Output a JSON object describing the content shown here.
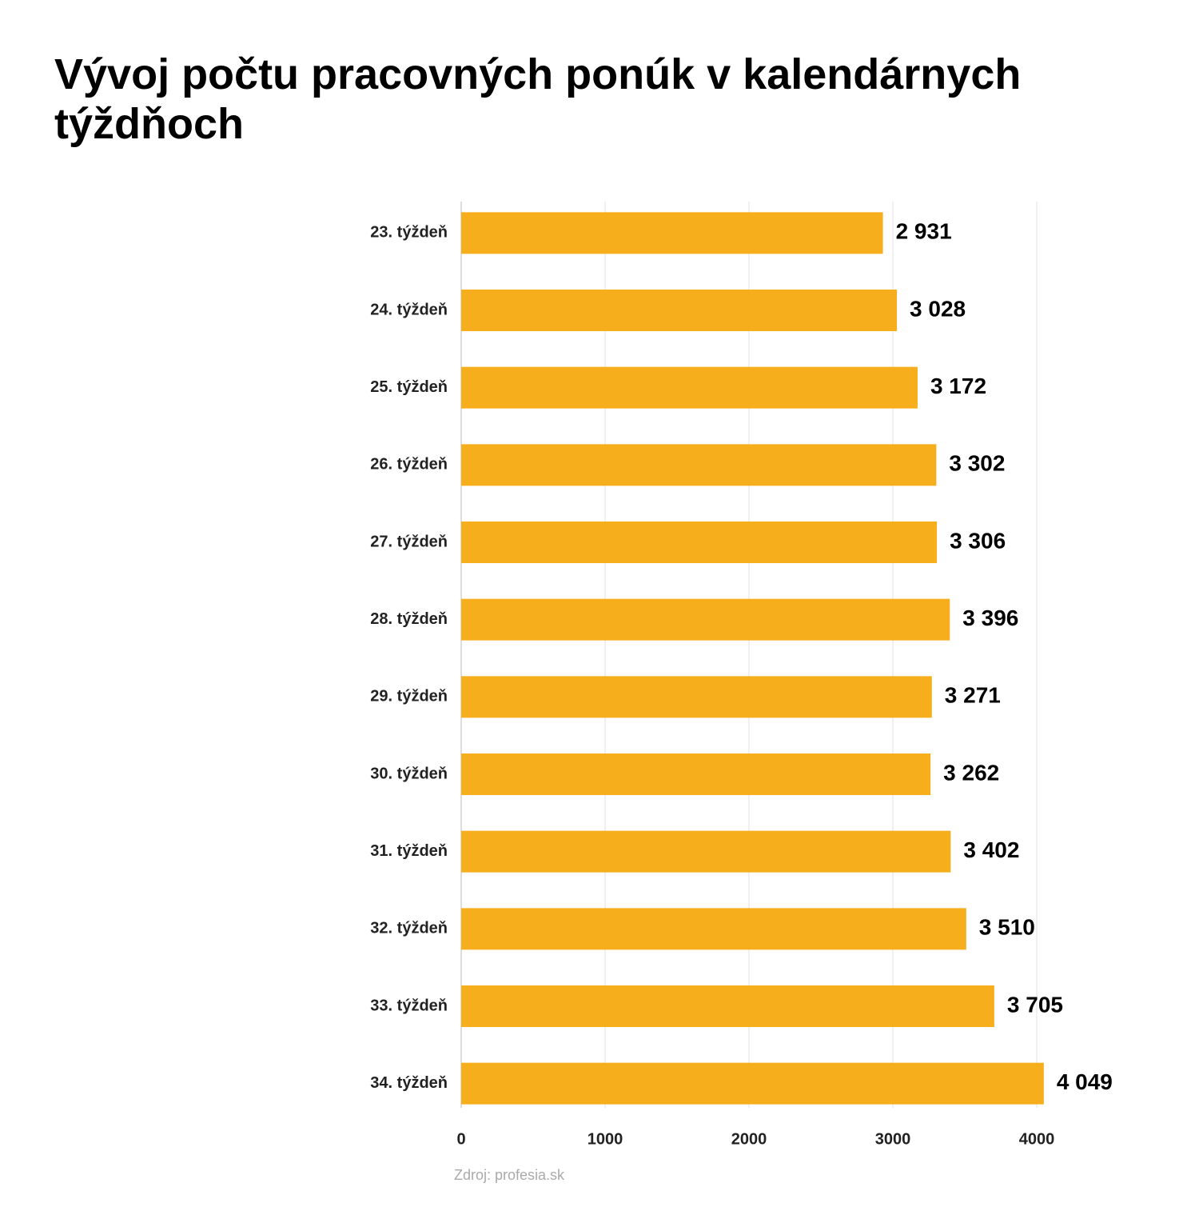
{
  "chart_data": {
    "type": "bar",
    "orientation": "horizontal",
    "title": "Vývoj počtu pracovných ponúk v kalendárnych týždňoch",
    "categories": [
      "23. týždeň",
      "24. týždeň",
      "25. týždeň",
      "26. týždeň",
      "27. týždeň",
      "28. týždeň",
      "29. týždeň",
      "30. týždeň",
      "31. týždeň",
      "32. týždeň",
      "33. týždeň",
      "34. týždeň"
    ],
    "values": [
      2931,
      3028,
      3172,
      3302,
      3306,
      3396,
      3271,
      3262,
      3402,
      3510,
      3705,
      4049
    ],
    "value_labels": [
      "2 931",
      "3 028",
      "3 172",
      "3 302",
      "3 306",
      "3 396",
      "3 271",
      "3 262",
      "3 402",
      "3 510",
      "3 705",
      "4 049"
    ],
    "color": "#f7ae1d",
    "xlim": [
      0,
      4000
    ],
    "xticks": [
      0,
      1000,
      2000,
      3000,
      4000
    ],
    "grid": true,
    "source": "Zdroj: profesia.sk"
  }
}
